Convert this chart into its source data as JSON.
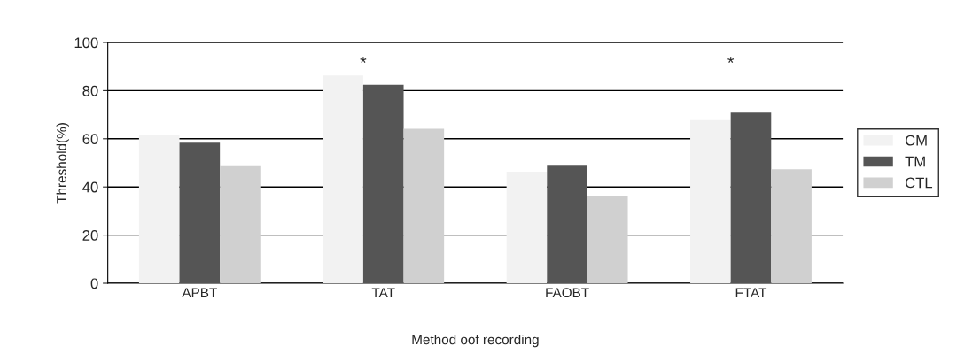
{
  "chart_data": {
    "type": "bar",
    "xlabel": "Method oof recording",
    "ylabel": "Threshold(%)",
    "categories": [
      "APBT",
      "TAT",
      "FAOBT",
      "FTAT"
    ],
    "series": [
      {
        "name": "CM",
        "color": "#f2f2f2",
        "values": [
          61.5,
          86.3,
          46.3,
          67.7
        ]
      },
      {
        "name": "TM",
        "color": "#555555",
        "values": [
          58.4,
          82.4,
          48.8,
          70.9
        ]
      },
      {
        "name": "CTL",
        "color": "#d0d0d0",
        "values": [
          48.6,
          64.2,
          36.4,
          47.3
        ]
      }
    ],
    "ylim": [
      0,
      100
    ],
    "yticks": [
      0,
      20,
      40,
      60,
      80,
      100
    ],
    "grid": "y",
    "legend": "right",
    "annotations": [
      "*",
      "*"
    ]
  }
}
